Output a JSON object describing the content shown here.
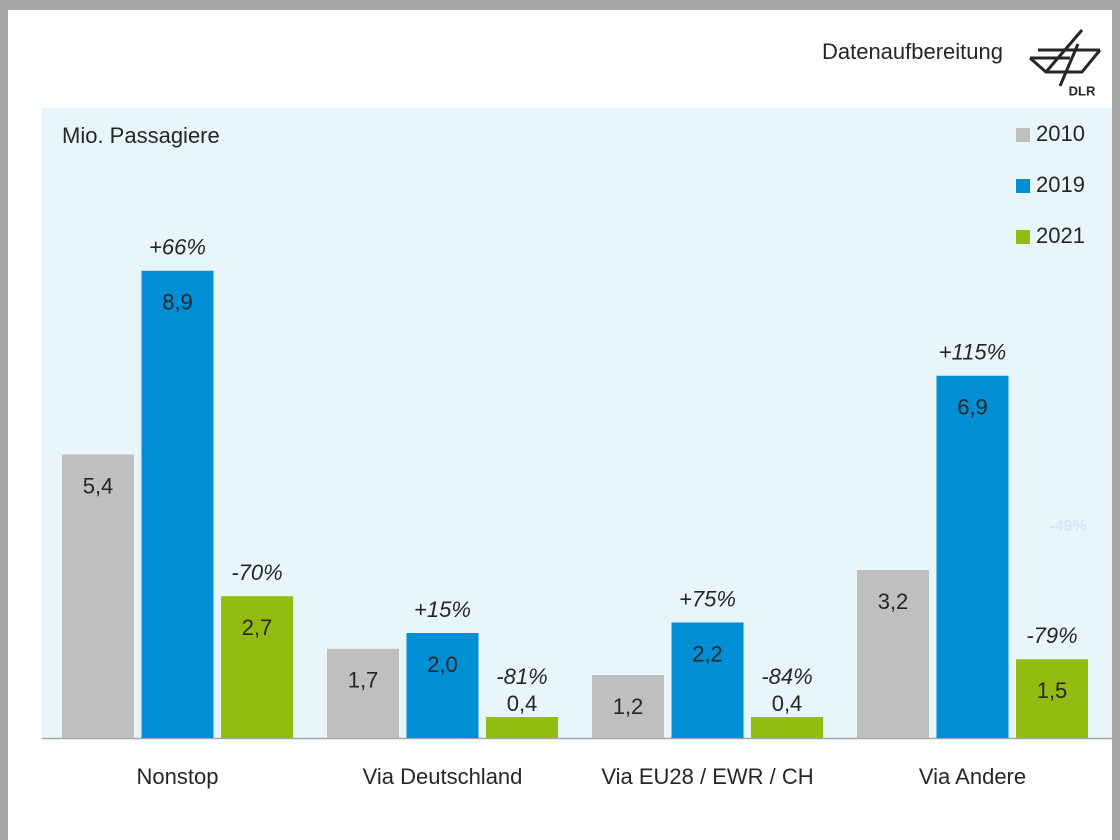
{
  "chart_data": {
    "type": "bar",
    "source": "Datenaufbereitung",
    "logo": "DLR",
    "y_label": "Mio. Passagiere",
    "categories": [
      "Nonstop",
      "Via Deutschland",
      "Via EU28 / EWR / CH",
      "Via Andere"
    ],
    "series": [
      {
        "name": "2010",
        "color": "#bfbfbf",
        "values": [
          5.4,
          1.7,
          1.2,
          3.2
        ],
        "value_labels": [
          "5,4",
          "1,7",
          "1,2",
          "3,2"
        ]
      },
      {
        "name": "2019",
        "color": "#008fd5",
        "values": [
          8.9,
          2.0,
          2.2,
          6.9
        ],
        "value_labels": [
          "8,9",
          "2,0",
          "2,2",
          "6,9"
        ],
        "change_labels": [
          "+66%",
          "+15%",
          "+75%",
          "+115%"
        ]
      },
      {
        "name": "2021",
        "color": "#93bc10",
        "values": [
          2.7,
          0.4,
          0.4,
          1.5
        ],
        "value_labels": [
          "2,7",
          "0,4",
          "0,4",
          "1,5"
        ],
        "change_labels": [
          "-70%",
          "-81%",
          "-84%",
          "-79%"
        ]
      }
    ],
    "annotations": [
      "-49%"
    ],
    "ylim": [
      0,
      12
    ],
    "legend": "top-right",
    "grid": false
  }
}
